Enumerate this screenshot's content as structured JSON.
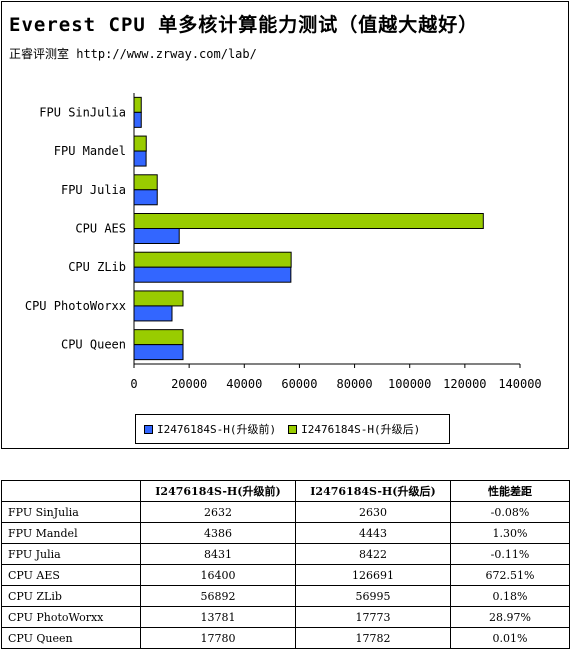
{
  "title": "Everest CPU 单多核计算能力测试（值越大越好）",
  "subtitle": "正睿评测室 http://www.zrway.com/lab/",
  "colors": {
    "series_before": "#3366ff",
    "series_after": "#99cc00",
    "border": "#000000"
  },
  "chart_data": {
    "type": "bar",
    "orientation": "horizontal",
    "title": "Everest CPU 单多核计算能力测试（值越大越好）",
    "categories": [
      "FPU SinJulia",
      "FPU Mandel",
      "FPU Julia",
      "CPU AES",
      "CPU ZLib",
      "CPU PhotoWorxx",
      "CPU Queen"
    ],
    "series": [
      {
        "name": "I2476184S-H(升级前)",
        "values": [
          2632,
          4386,
          8431,
          16400,
          56892,
          13781,
          17780
        ]
      },
      {
        "name": "I2476184S-H(升级后)",
        "values": [
          2630,
          4443,
          8422,
          126691,
          56995,
          17773,
          17782
        ]
      }
    ],
    "xlim": [
      0,
      140000
    ],
    "xticks": [
      "0",
      "20000",
      "40000",
      "60000",
      "80000",
      "100000",
      "120000",
      "140000"
    ],
    "grid": false,
    "legend_position": "bottom"
  },
  "table": {
    "headers": [
      "",
      "I2476184S-H(升级前)",
      "I2476184S-H(升级后)",
      "性能差距"
    ],
    "rows": [
      [
        "FPU SinJulia",
        "2632",
        "2630",
        "-0.08%"
      ],
      [
        "FPU Mandel",
        "4386",
        "4443",
        "1.30%"
      ],
      [
        "FPU Julia",
        "8431",
        "8422",
        "-0.11%"
      ],
      [
        "CPU AES",
        "16400",
        "126691",
        "672.51%"
      ],
      [
        "CPU ZLib",
        "56892",
        "56995",
        "0.18%"
      ],
      [
        "CPU PhotoWorxx",
        "13781",
        "17773",
        "28.97%"
      ],
      [
        "CPU Queen",
        "17780",
        "17782",
        "0.01%"
      ]
    ]
  }
}
